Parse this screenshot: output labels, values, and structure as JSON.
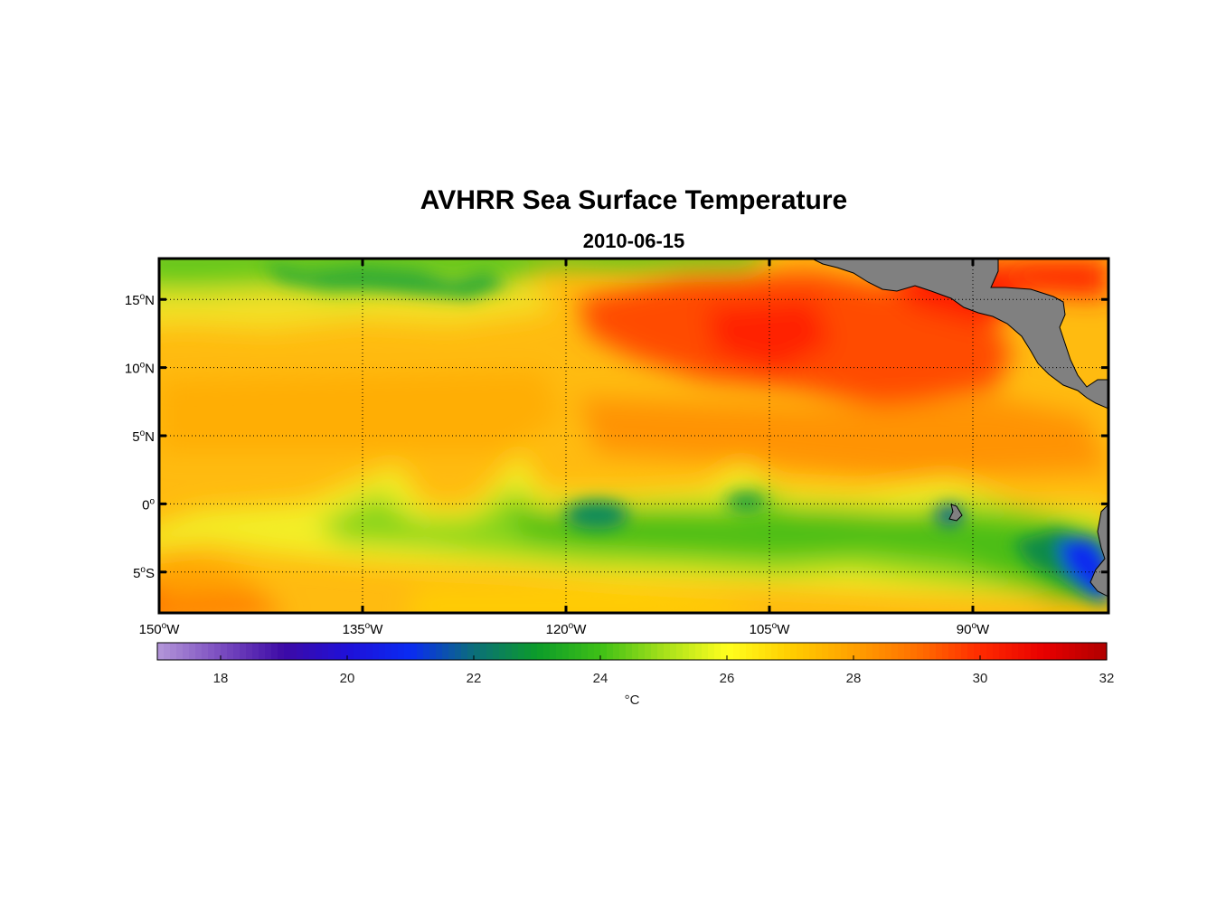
{
  "title": "AVHRR Sea Surface Temperature",
  "subtitle": "2010-06-15",
  "map": {
    "lon_range": [
      -150,
      -80
    ],
    "lat_range": [
      -8,
      18
    ],
    "lon_ticks": [
      {
        "value": -150,
        "num": "150",
        "sup": "o",
        "hem": "W"
      },
      {
        "value": -135,
        "num": "135",
        "sup": "o",
        "hem": "W"
      },
      {
        "value": -120,
        "num": "120",
        "sup": "o",
        "hem": "W"
      },
      {
        "value": -105,
        "num": "105",
        "sup": "o",
        "hem": "W"
      },
      {
        "value": -90,
        "num": "90",
        "sup": "o",
        "hem": "W"
      }
    ],
    "lat_ticks": [
      {
        "value": 15,
        "num": "15",
        "sup": "o",
        "hem": "N"
      },
      {
        "value": 10,
        "num": "10",
        "sup": "o",
        "hem": "N"
      },
      {
        "value": 5,
        "num": "5",
        "sup": "o",
        "hem": "N"
      },
      {
        "value": 0,
        "num": "0",
        "sup": "o",
        "hem": ""
      },
      {
        "value": -5,
        "num": "5",
        "sup": "o",
        "hem": "S"
      }
    ],
    "grid": "dotted",
    "land_color": "#808080",
    "projection": "equirectangular"
  },
  "colorbar": {
    "range": [
      17,
      32
    ],
    "ticks": [
      "18",
      "20",
      "22",
      "24",
      "26",
      "28",
      "30",
      "32"
    ],
    "label": "°C",
    "colors": [
      {
        "t": 17,
        "c": "#b497d9"
      },
      {
        "t": 18,
        "c": "#7a4cc0"
      },
      {
        "t": 19,
        "c": "#3d0aa6"
      },
      {
        "t": 20,
        "c": "#1f10d8"
      },
      {
        "t": 21,
        "c": "#0a2bf2"
      },
      {
        "t": 22,
        "c": "#0b6e7a"
      },
      {
        "t": 23,
        "c": "#0c9c2a"
      },
      {
        "t": 24,
        "c": "#3ec016"
      },
      {
        "t": 25,
        "c": "#a6e01a"
      },
      {
        "t": 26,
        "c": "#ffff1e"
      },
      {
        "t": 27,
        "c": "#ffce00"
      },
      {
        "t": 28,
        "c": "#ffa000"
      },
      {
        "t": 29,
        "c": "#ff7000"
      },
      {
        "t": 30,
        "c": "#ff2a00"
      },
      {
        "t": 31,
        "c": "#e80000"
      },
      {
        "t": 32,
        "c": "#b00000"
      }
    ]
  }
}
